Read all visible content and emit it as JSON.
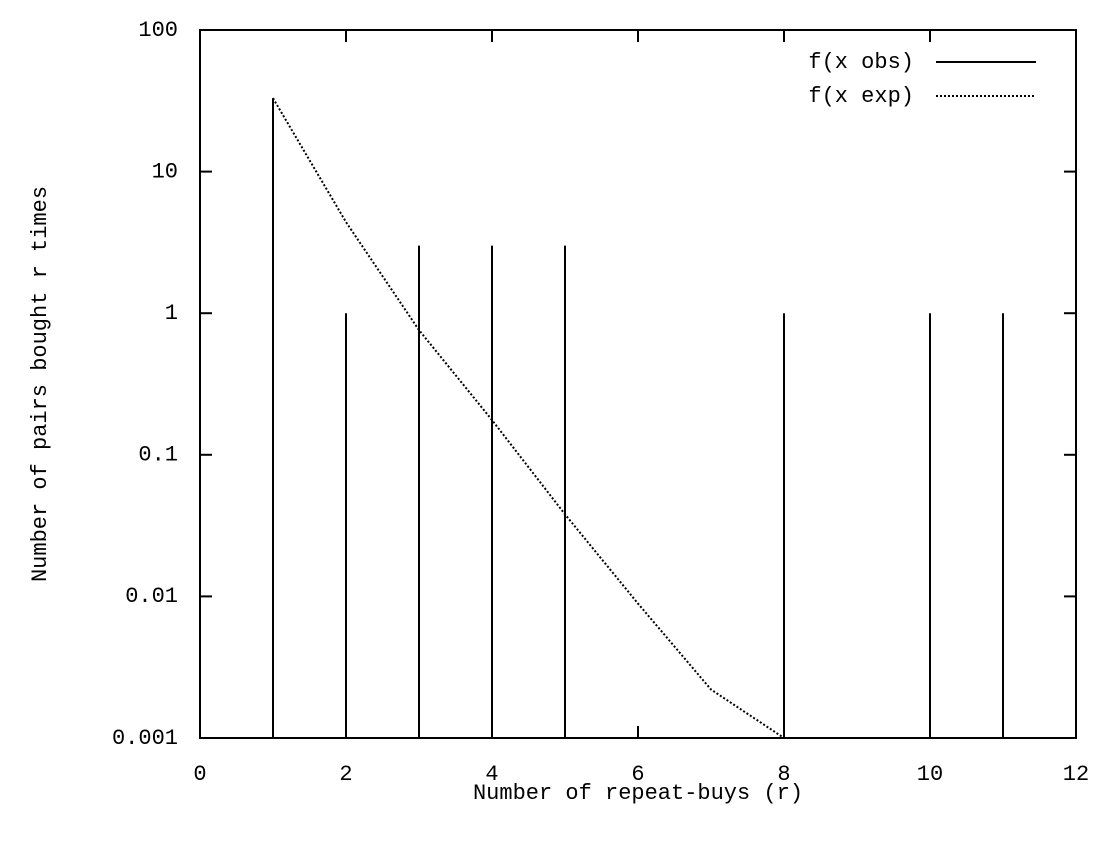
{
  "chart_data": {
    "type": "line",
    "x_label": "Number of repeat-buys (r)",
    "y_label": "Number of pairs bought r times",
    "xlim": [
      0,
      12
    ],
    "xticks": [
      0,
      2,
      4,
      6,
      8,
      10,
      12
    ],
    "ylim": [
      0.001,
      100
    ],
    "yticks": [
      0.001,
      0.01,
      0.1,
      1,
      10,
      100
    ],
    "log_y": true,
    "grid": false,
    "legend": "top-right",
    "series": [
      {
        "name": "f(x obs)",
        "color": "#000000",
        "style": "impulses",
        "x": [
          1,
          2,
          3,
          4,
          5,
          8,
          10,
          11
        ],
        "values": [
          33,
          1,
          3,
          3,
          3,
          1,
          1,
          1
        ]
      },
      {
        "name": "f(x exp)",
        "color": "#000000",
        "style": "dotted",
        "x": [
          1,
          2,
          3,
          4,
          5,
          6,
          7,
          8
        ],
        "values": [
          33,
          4.4,
          0.76,
          0.176,
          0.038,
          0.0089,
          0.0022,
          0.001
        ]
      }
    ]
  }
}
